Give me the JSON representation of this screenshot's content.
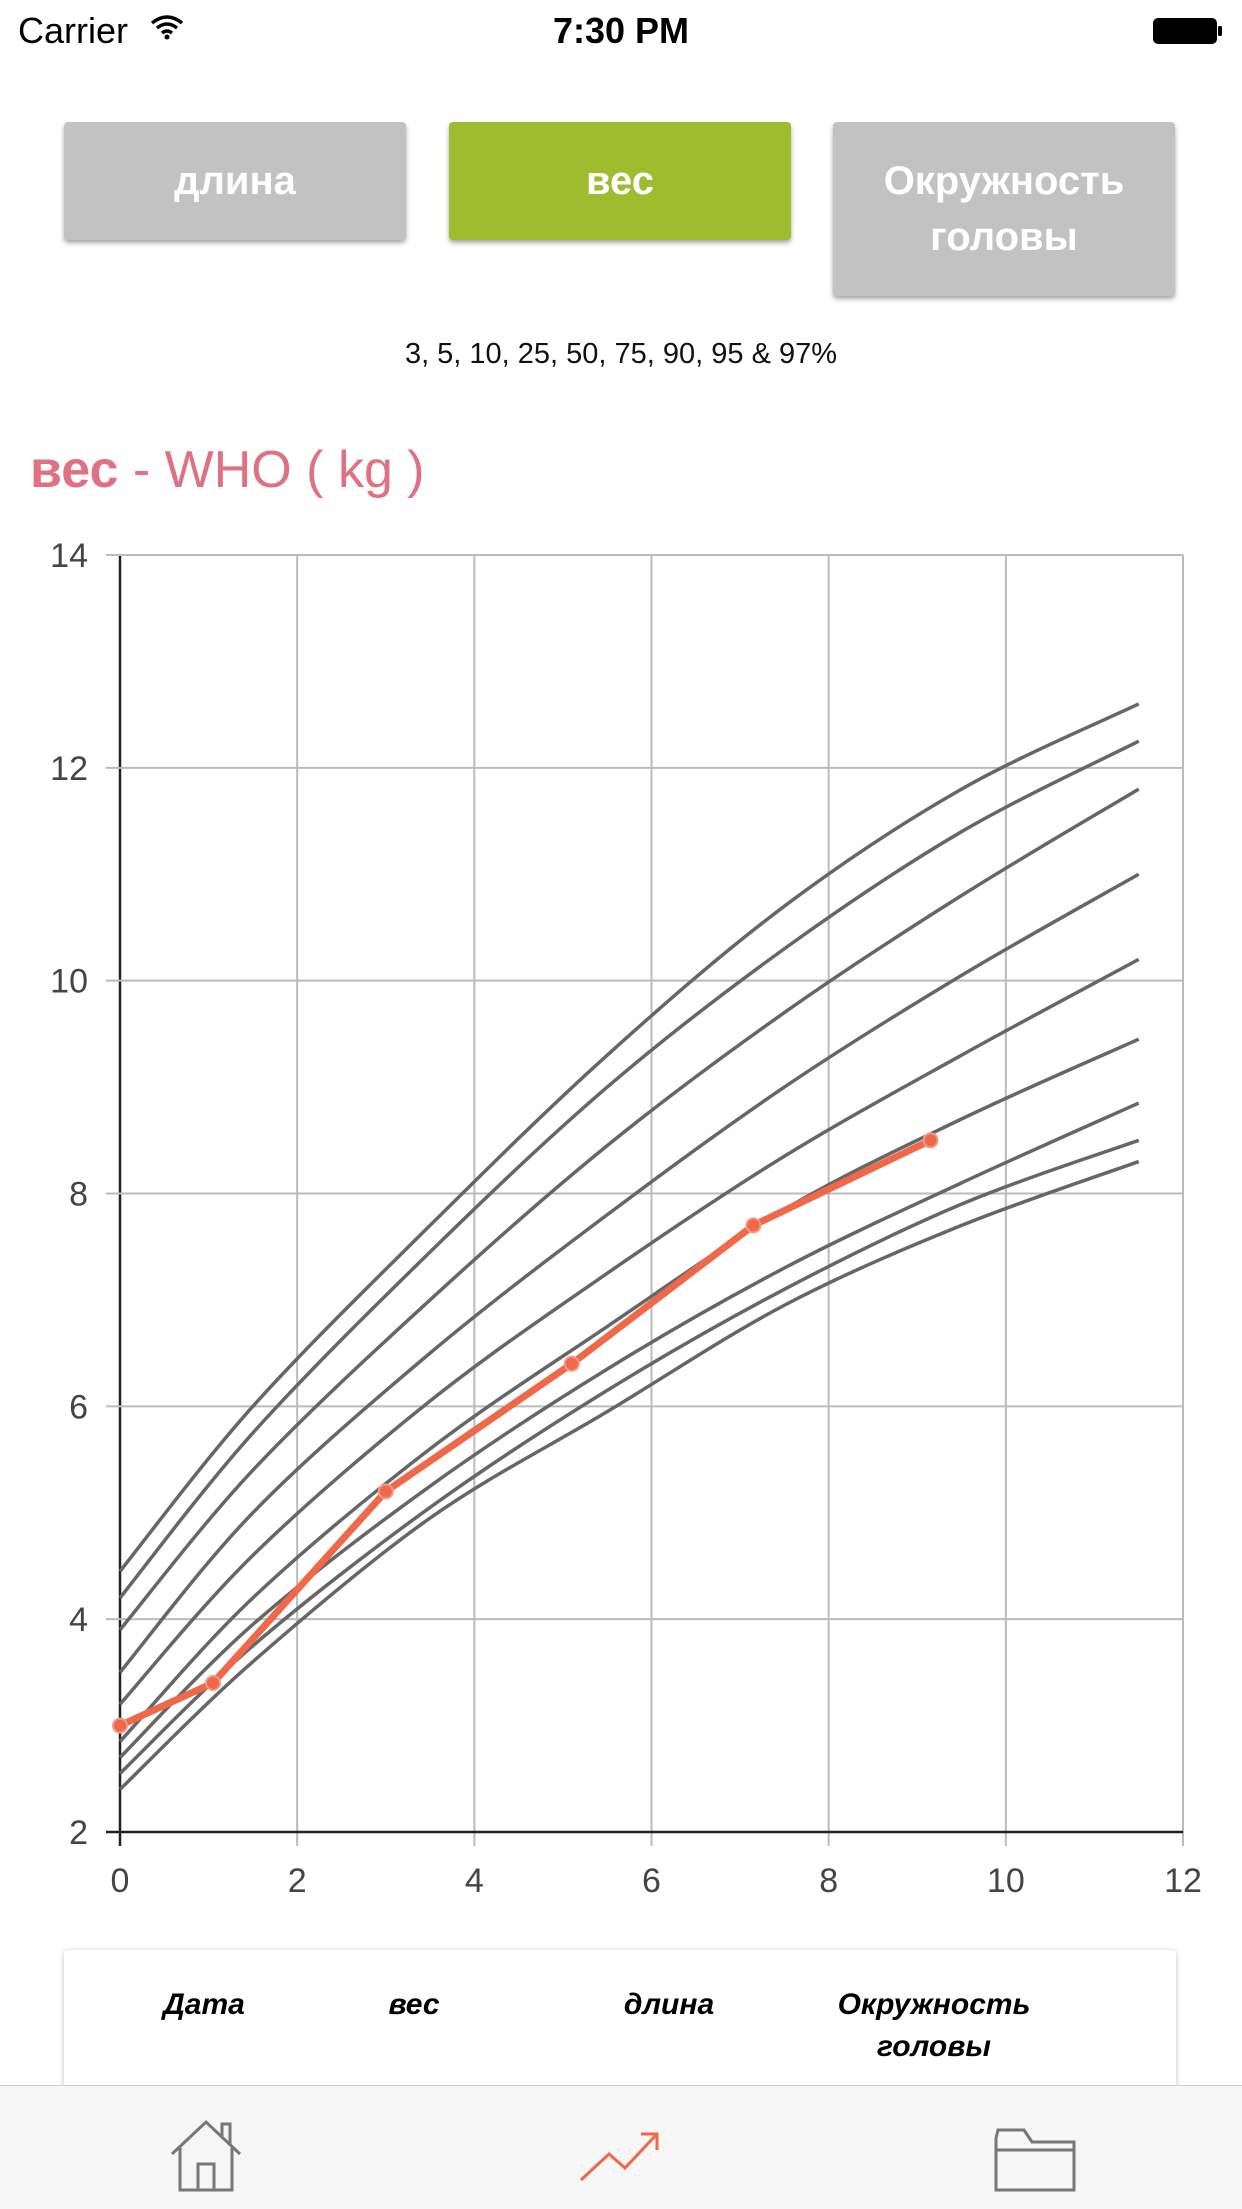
{
  "status_bar": {
    "carrier": "Carrier",
    "time": "7:30 PM"
  },
  "tabs_top": [
    {
      "label": "длина",
      "active": false
    },
    {
      "label": "вес",
      "active": true
    },
    {
      "label": "Окружность головы",
      "active": false
    }
  ],
  "percentiles_caption": "3, 5, 10, 25, 50, 75, 90, 95 & 97%",
  "chart_title": {
    "metric": "вес",
    "rest": " - WHO ( kg )"
  },
  "colors": {
    "accent_green": "#9dbd2f",
    "inactive_gray": "#c2c2c2",
    "title_pink": "#e07182",
    "child_line": "#f0684a",
    "percentile_line": "#666666"
  },
  "chart_data": {
    "type": "line",
    "xlim": [
      0,
      12
    ],
    "ylim": [
      2,
      14
    ],
    "x_ticks": [
      "0",
      "2",
      "4",
      "6",
      "8",
      "10",
      "12"
    ],
    "y_ticks": [
      "2",
      "4",
      "6",
      "8",
      "10",
      "12",
      "14"
    ],
    "grid": true,
    "percentile_x": [
      0,
      1.5,
      3.5,
      5.5,
      7.5,
      9.5,
      11.5
    ],
    "percentile_series": [
      {
        "values": [
          2.4,
          3.6,
          4.95,
          5.95,
          6.95,
          7.7,
          8.3
        ]
      },
      {
        "values": [
          2.55,
          3.75,
          5.05,
          6.15,
          7.1,
          7.9,
          8.5
        ]
      },
      {
        "values": [
          2.7,
          3.95,
          5.25,
          6.35,
          7.3,
          8.1,
          8.85
        ]
      },
      {
        "values": [
          2.85,
          4.2,
          5.6,
          6.75,
          7.85,
          8.7,
          9.45
        ]
      },
      {
        "values": [
          3.2,
          4.6,
          6.05,
          7.25,
          8.35,
          9.3,
          10.2
        ]
      },
      {
        "values": [
          3.5,
          5.0,
          6.5,
          7.8,
          9.0,
          10.05,
          11.0
        ]
      },
      {
        "values": [
          3.9,
          5.4,
          7.0,
          8.45,
          9.7,
          10.8,
          11.8
        ]
      },
      {
        "values": [
          4.2,
          5.75,
          7.45,
          9.0,
          10.3,
          11.4,
          12.25
        ]
      },
      {
        "values": [
          4.45,
          6.0,
          7.7,
          9.3,
          10.7,
          11.8,
          12.6
        ]
      }
    ],
    "child_series": {
      "x": [
        0,
        1.05,
        3.0,
        5.1,
        7.15,
        9.15
      ],
      "y": [
        3.0,
        3.4,
        5.2,
        6.4,
        7.7,
        8.5
      ]
    }
  },
  "table": {
    "headers": [
      "Дата",
      "вес",
      "длина",
      "Окружность головы"
    ]
  },
  "tab_bar": {
    "items": [
      {
        "icon": "home-icon"
      },
      {
        "icon": "chart-trend-icon"
      },
      {
        "icon": "folder-icon"
      }
    ]
  }
}
